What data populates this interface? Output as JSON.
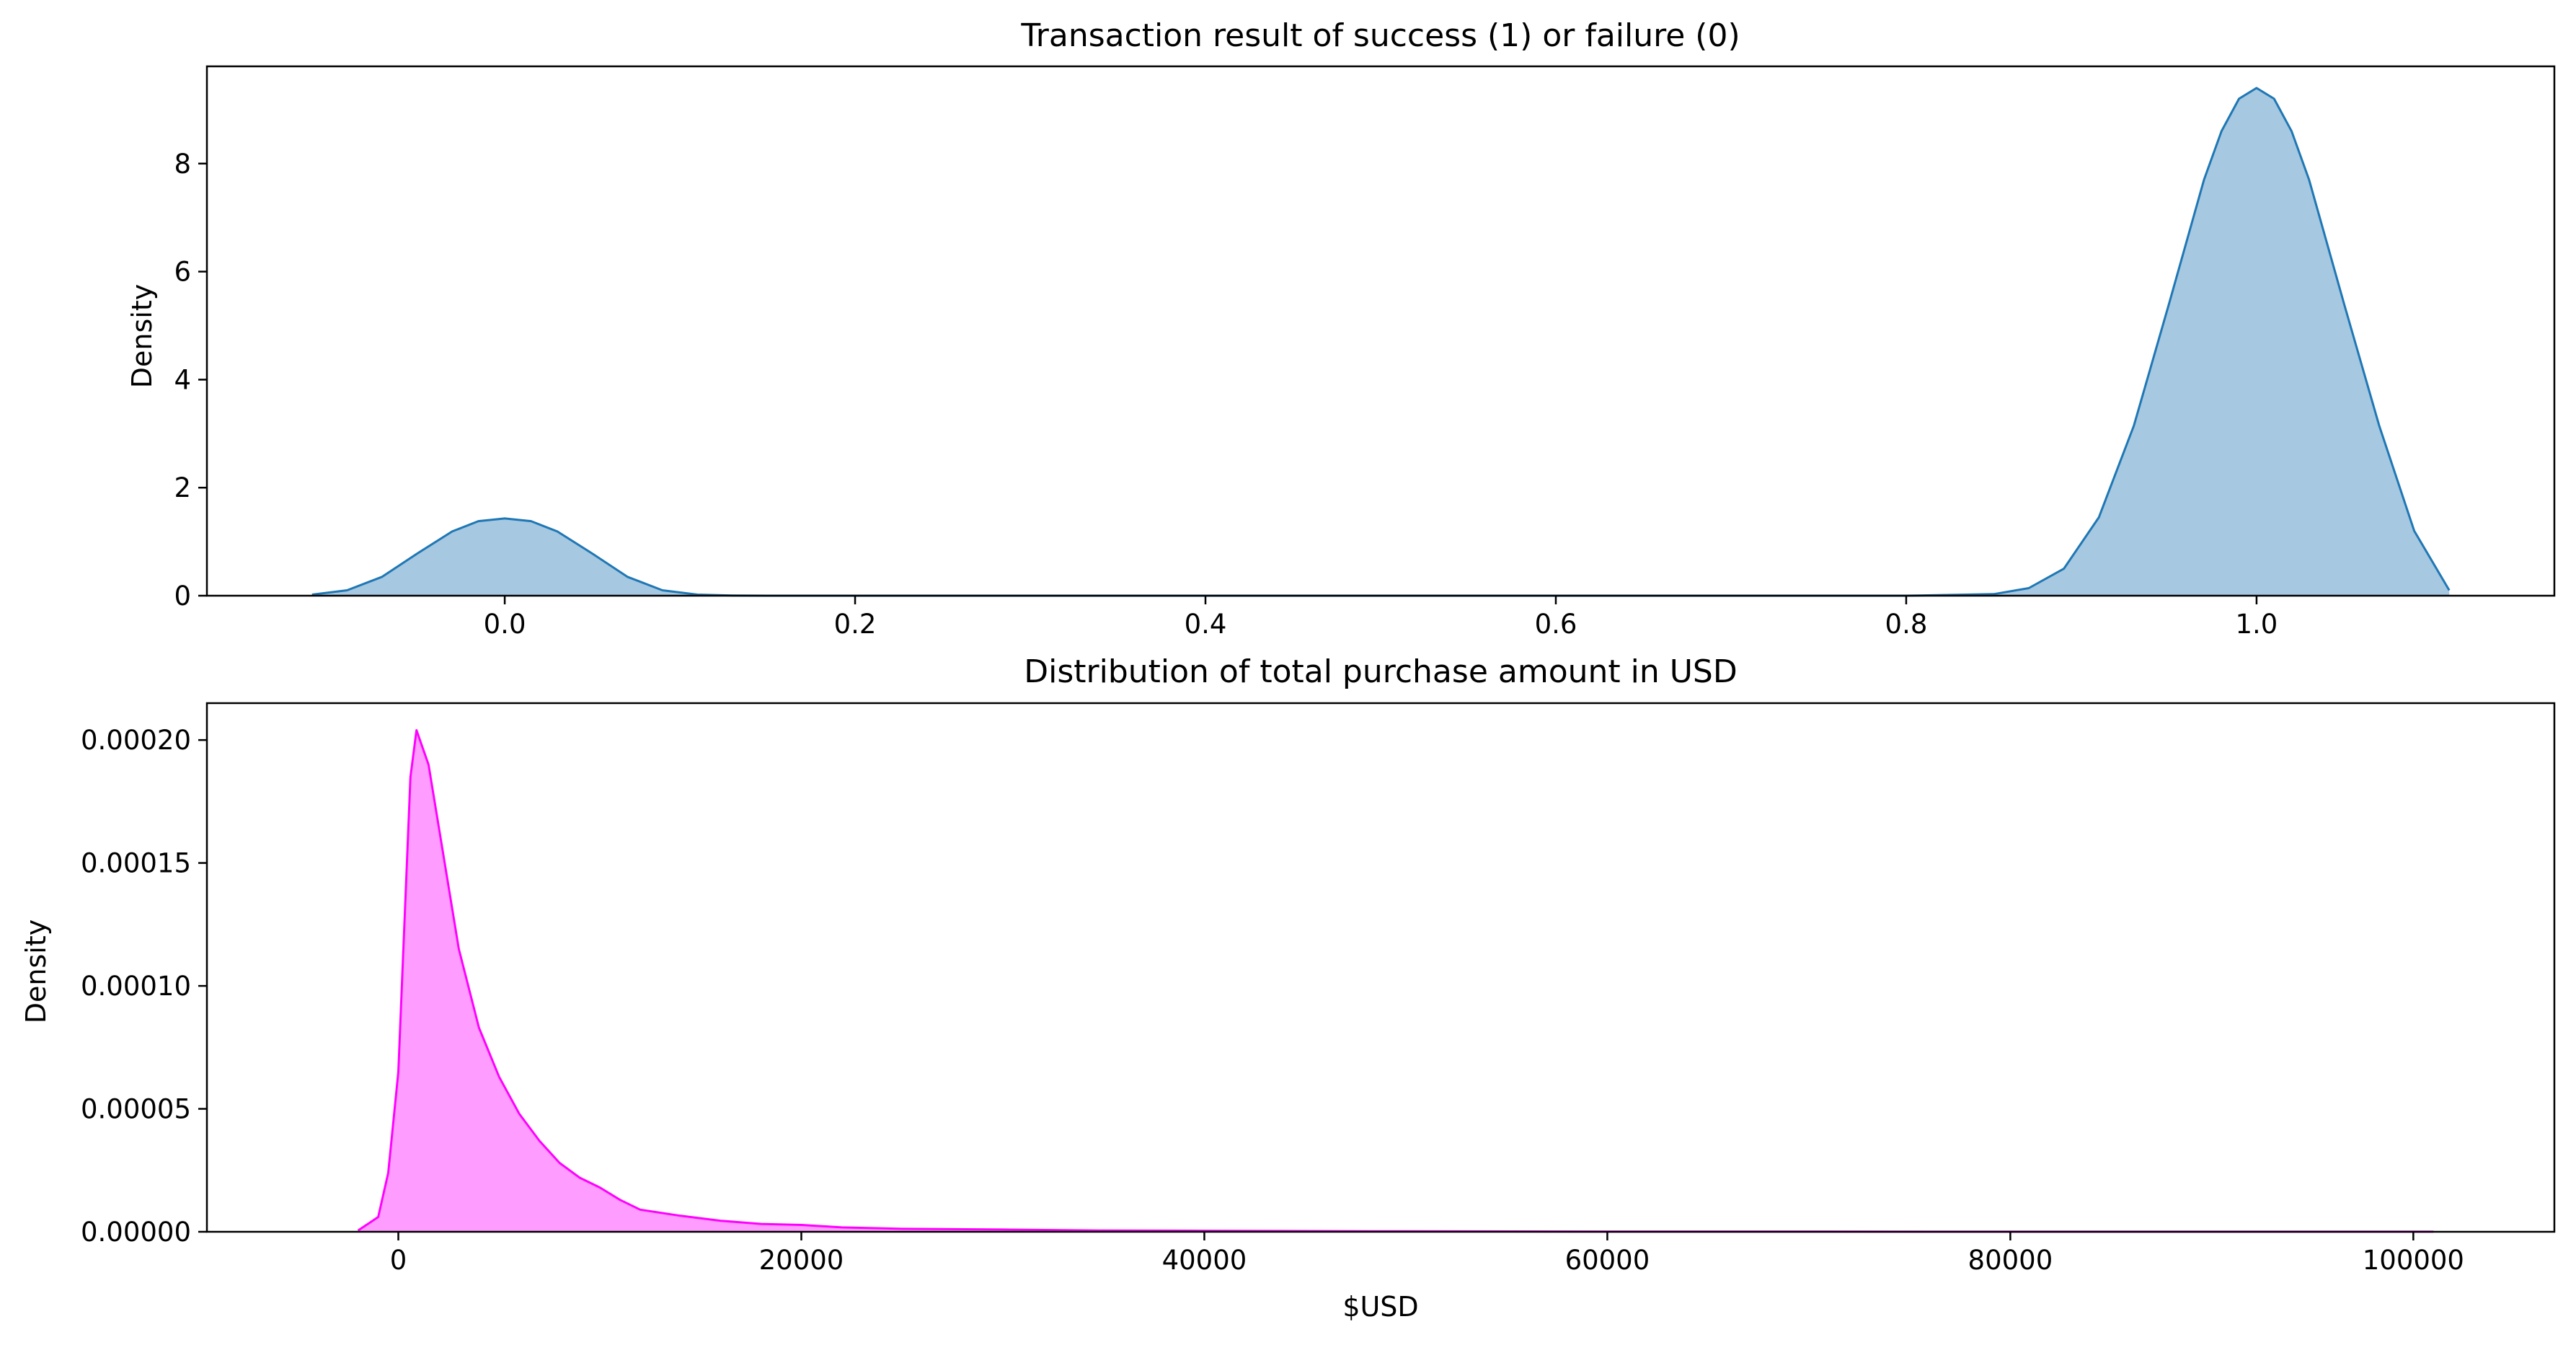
{
  "chart_data": [
    {
      "type": "area",
      "title": "Transaction result of success (1) or failure (0)",
      "xlabel": "",
      "ylabel": "Density",
      "xlim": [
        -0.17,
        1.17
      ],
      "ylim": [
        0,
        9.8
      ],
      "xticks": [
        0.0,
        0.2,
        0.4,
        0.6,
        0.8,
        1.0
      ],
      "xtick_labels": [
        "0.0",
        "0.2",
        "0.4",
        "0.6",
        "0.8",
        "1.0"
      ],
      "yticks": [
        0,
        2,
        4,
        6,
        8
      ],
      "ytick_labels": [
        "0",
        "2",
        "4",
        "6",
        "8"
      ],
      "grid": false,
      "line_color": "#1f77b4",
      "fill_color": "#a6c8e1",
      "series": [
        {
          "x": [
            -0.11,
            -0.09,
            -0.07,
            -0.05,
            -0.03,
            -0.015,
            0.0,
            0.015,
            0.03,
            0.05,
            0.07,
            0.09,
            0.11,
            0.13,
            0.15,
            0.2,
            0.3,
            0.4,
            0.5,
            0.6,
            0.7,
            0.8,
            0.85,
            0.87,
            0.89,
            0.91,
            0.93,
            0.95,
            0.97,
            0.98,
            0.99,
            1.0,
            1.01,
            1.02,
            1.03,
            1.05,
            1.07,
            1.09,
            1.11
          ],
          "y": [
            0.02,
            0.1,
            0.35,
            0.78,
            1.19,
            1.38,
            1.43,
            1.38,
            1.19,
            0.78,
            0.35,
            0.1,
            0.02,
            0.004,
            0.0,
            0.0,
            0.0,
            0.0,
            0.0,
            0.0,
            0.0,
            0.0,
            0.03,
            0.14,
            0.5,
            1.45,
            3.15,
            5.4,
            7.7,
            8.6,
            9.2,
            9.4,
            9.2,
            8.6,
            7.7,
            5.4,
            3.15,
            1.2,
            0.1
          ]
        }
      ]
    },
    {
      "type": "area",
      "title": "Distribution of total purchase amount in USD",
      "xlabel": "$USD",
      "ylabel": "Density",
      "xlim": [
        -9500,
        107000
      ],
      "ylim": [
        0,
        0.000215
      ],
      "xticks": [
        0,
        20000,
        40000,
        60000,
        80000,
        100000
      ],
      "xtick_labels": [
        "0",
        "20000",
        "40000",
        "60000",
        "80000",
        "100000"
      ],
      "yticks": [
        0,
        5e-05,
        0.0001,
        0.00015,
        0.0002
      ],
      "ytick_labels": [
        "0.00000",
        "0.00005",
        "0.00010",
        "0.00015",
        "0.00020"
      ],
      "grid": false,
      "line_color": "#ff00ff",
      "fill_color": "#ff9cff",
      "series": [
        {
          "x": [
            -2000,
            -1000,
            -500,
            0,
            300,
            600,
            900,
            1500,
            2000,
            3000,
            4000,
            5000,
            6000,
            7000,
            8000,
            9000,
            10000,
            11000,
            12000,
            14000,
            16000,
            18000,
            20000,
            22000,
            25000,
            30000,
            35000,
            40000,
            50000,
            60000,
            70000,
            80000,
            90000,
            101000
          ],
          "y": [
            5e-07,
            6e-06,
            2.4e-05,
            6.5e-05,
            0.000125,
            0.000185,
            0.000204,
            0.00019,
            0.000165,
            0.000115,
            8.3e-05,
            6.3e-05,
            4.8e-05,
            3.7e-05,
            2.8e-05,
            2.2e-05,
            1.8e-05,
            1.3e-05,
            9e-06,
            6.5e-06,
            4.5e-06,
            3.2e-06,
            2.8e-06,
            1.8e-06,
            1.2e-06,
            9e-07,
            5e-07,
            4e-07,
            2e-07,
            1e-07,
            5e-08,
            4e-08,
            3e-08,
            2e-08
          ]
        }
      ]
    }
  ]
}
